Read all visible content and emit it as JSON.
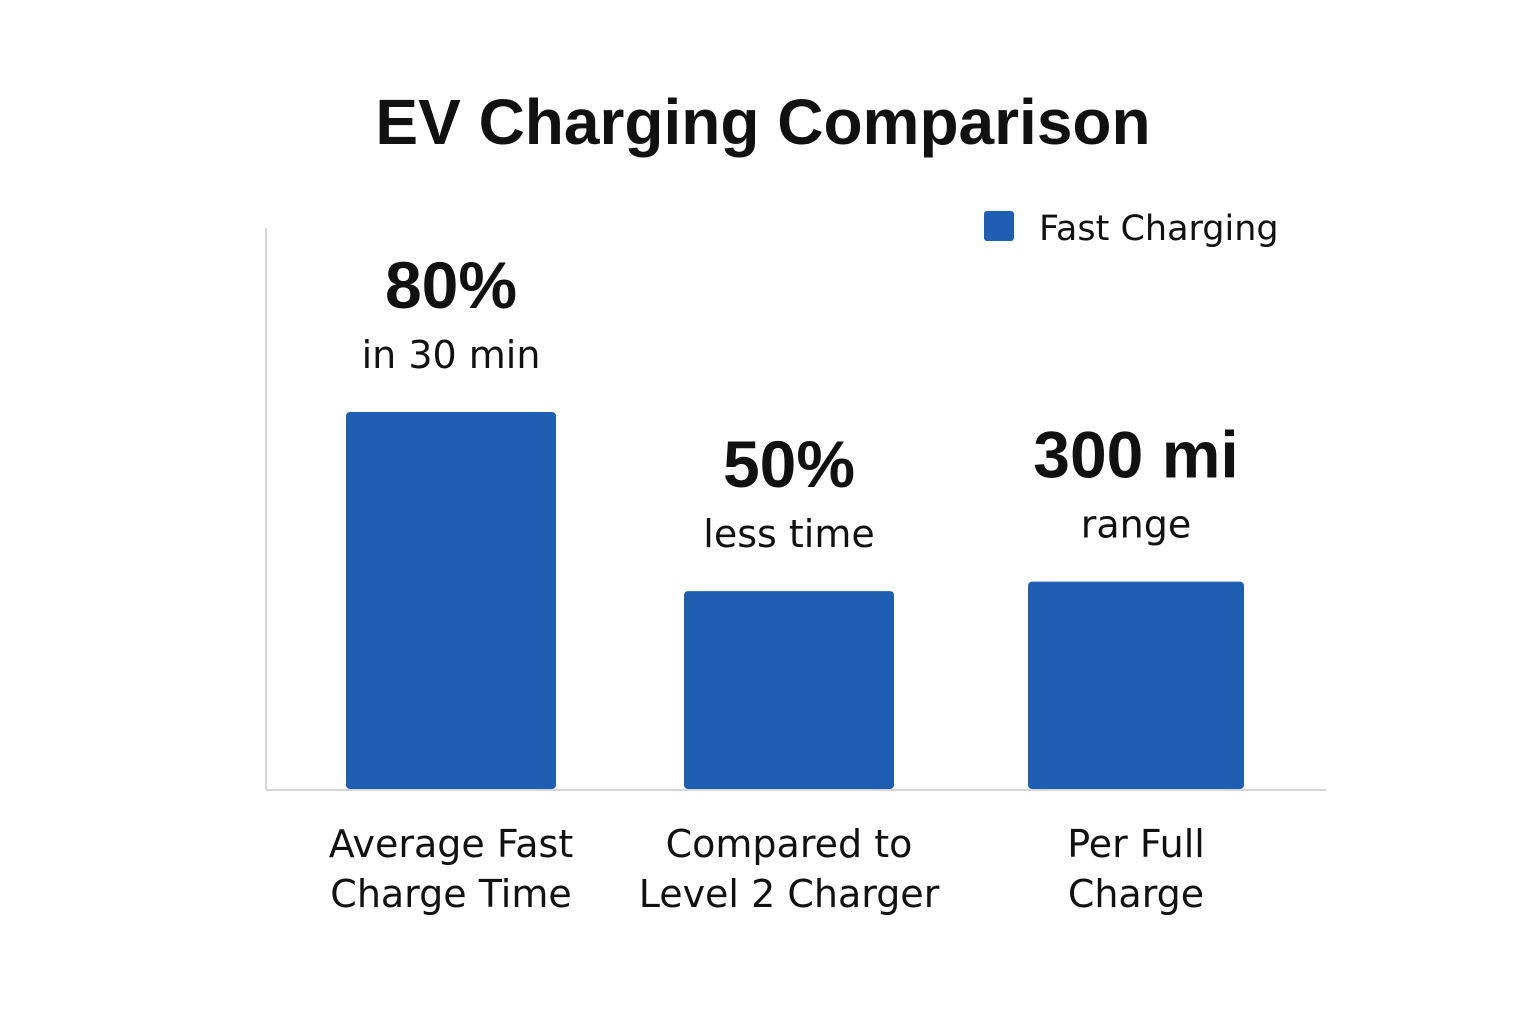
{
  "chart_data": {
    "type": "bar",
    "title": "EV Charging Comparison",
    "legend": {
      "position": "top-right",
      "entries": [
        "Fast Charging"
      ]
    },
    "colors": {
      "series": "#1f5fb3"
    },
    "categories": [
      [
        "Average Fast",
        "Charge Time"
      ],
      [
        "Compared to",
        "Level 2 Charger"
      ],
      [
        "Per Full",
        "Charge"
      ]
    ],
    "series": [
      {
        "name": "Fast Charging",
        "values": [
          80,
          42,
          44
        ],
        "labels": [
          {
            "main": "80%",
            "sub": "in 30 min"
          },
          {
            "main": "50%",
            "sub": "less time"
          },
          {
            "main": "300 mi",
            "sub": "range"
          }
        ]
      }
    ],
    "ylim": [
      0,
      100
    ],
    "grid": false,
    "xlabel": "",
    "ylabel": ""
  }
}
